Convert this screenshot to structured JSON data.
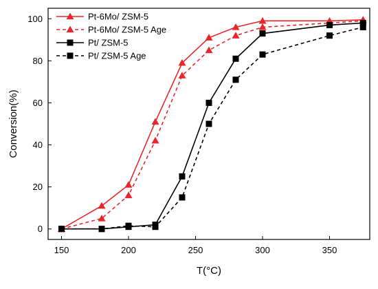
{
  "chart_data": {
    "type": "line",
    "title": "",
    "xlabel": "T(°C)",
    "ylabel": "Conversion(%)",
    "xlim": [
      140,
      380
    ],
    "ylim": [
      -5,
      105
    ],
    "xticks": [
      150,
      200,
      250,
      300,
      350
    ],
    "yticks": [
      0,
      20,
      40,
      60,
      80,
      100
    ],
    "grid": false,
    "legend_position": "top-left",
    "series": [
      {
        "name": "Pt-6Mo/ ZSM-5",
        "color": "#e8262b",
        "line": "solid",
        "marker": "triangle",
        "x": [
          150,
          180,
          200,
          220,
          240,
          260,
          280,
          300,
          350,
          375
        ],
        "y": [
          0,
          11,
          21,
          51,
          79,
          91,
          96,
          99,
          99,
          99.5
        ]
      },
      {
        "name": "Pt-6Mo/ ZSM-5 Age",
        "color": "#e8262b",
        "line": "dashed",
        "marker": "triangle",
        "x": [
          150,
          180,
          200,
          220,
          240,
          260,
          280,
          300,
          350,
          375
        ],
        "y": [
          0,
          5,
          16,
          42,
          73,
          85,
          92,
          96,
          98,
          99
        ]
      },
      {
        "name": "Pt/ ZSM-5",
        "color": "#000000",
        "line": "solid",
        "marker": "square",
        "x": [
          150,
          180,
          200,
          220,
          240,
          260,
          280,
          300,
          350,
          375
        ],
        "y": [
          0,
          0,
          1,
          2,
          25,
          60,
          81,
          93,
          97,
          98
        ]
      },
      {
        "name": "Pt/ ZSM-5 Age",
        "color": "#000000",
        "line": "dashed",
        "marker": "square",
        "x": [
          150,
          180,
          200,
          220,
          240,
          260,
          280,
          300,
          350,
          375
        ],
        "y": [
          0,
          0,
          1.5,
          1,
          15,
          50,
          71,
          83,
          92,
          96
        ]
      }
    ]
  }
}
